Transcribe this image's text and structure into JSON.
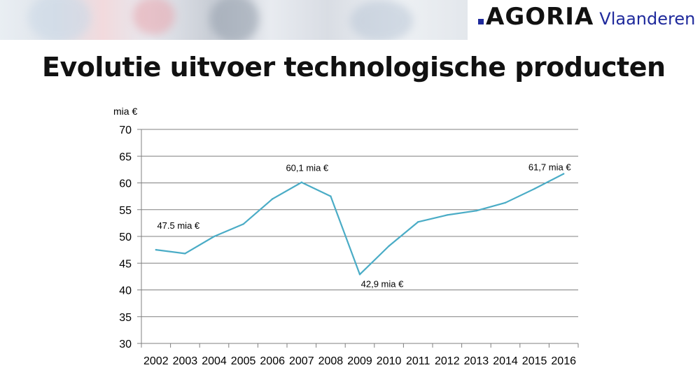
{
  "header": {
    "logo_main": "AGORIA",
    "logo_sub": "Vlaanderen"
  },
  "colors": {
    "line": "#4aacc6",
    "logo_blue": "#1f2a9c",
    "grid": "#808080"
  },
  "chart_data": {
    "type": "line",
    "title": "Evolutie uitvoer technologische producten",
    "ylabel": "mia €",
    "xlabel": "",
    "ylim": [
      30,
      70
    ],
    "yticks": [
      30,
      35,
      40,
      45,
      50,
      55,
      60,
      65,
      70
    ],
    "grid": true,
    "legend": "none",
    "categories": [
      "2002",
      "2003",
      "2004",
      "2005",
      "2006",
      "2007",
      "2008",
      "2009",
      "2010",
      "2011",
      "2012",
      "2013",
      "2014",
      "2015",
      "2016"
    ],
    "series": [
      {
        "values": [
          47.5,
          46.8,
          50.0,
          52.3,
          57.0,
          60.1,
          57.5,
          42.9,
          48.2,
          52.7,
          54.0,
          54.8,
          56.3,
          58.9,
          61.7
        ]
      }
    ],
    "annotations": [
      {
        "index": 0,
        "text": "47.5 mia €"
      },
      {
        "index": 5,
        "text": "60,1 mia €"
      },
      {
        "index": 7,
        "text": "42,9 mia €"
      },
      {
        "index": 14,
        "text": "61,7 mia €"
      }
    ]
  }
}
